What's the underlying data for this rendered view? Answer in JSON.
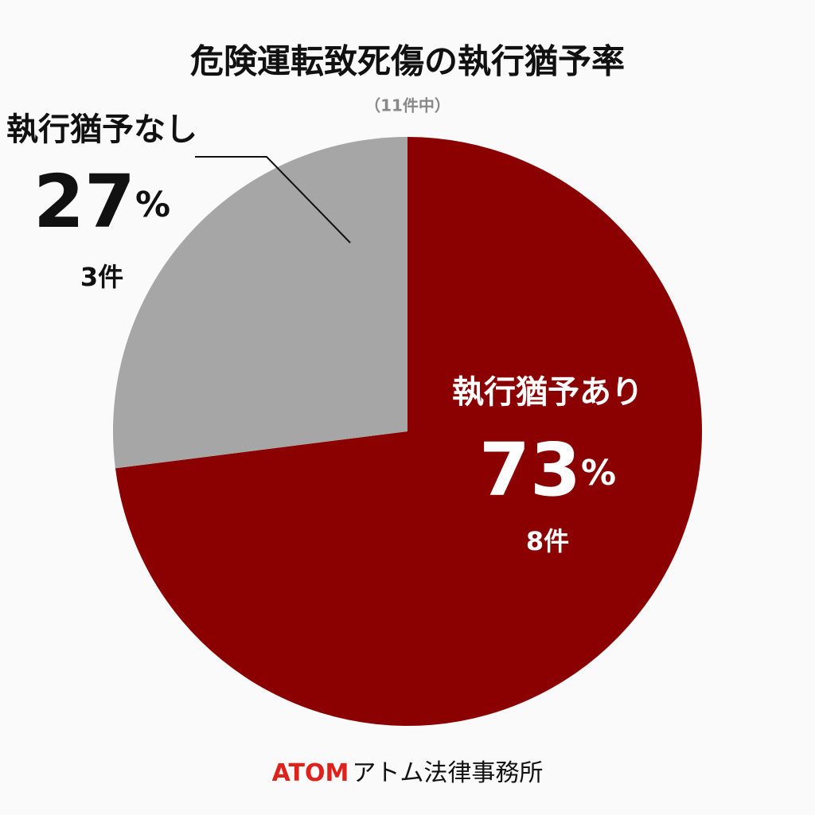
{
  "chart_data": {
    "type": "pie",
    "title": "危険運転致死傷の執行猶予率",
    "subtitle": "（11件中）",
    "categories": [
      "執行猶予あり",
      "執行猶予なし"
    ],
    "values": [
      73,
      27
    ],
    "value_labels": [
      "73%",
      "27%"
    ],
    "count_labels": [
      "8件",
      "3件"
    ],
    "colors": [
      "#8b0000",
      "#a6a6a6"
    ]
  },
  "footer": {
    "brand": "ATOM",
    "name": "アトム法律事務所"
  }
}
